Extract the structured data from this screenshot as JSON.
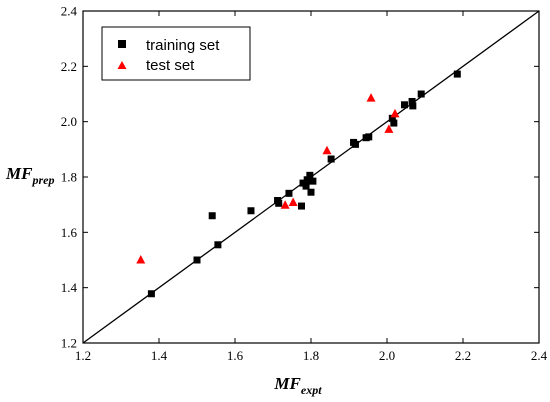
{
  "chart_data": {
    "type": "scatter",
    "xlabel": {
      "main": "MF",
      "sub": "expt"
    },
    "ylabel": {
      "main": "MF",
      "sub": "prep"
    },
    "xlim": [
      1.2,
      2.4
    ],
    "ylim": [
      1.2,
      2.4
    ],
    "xticks": [
      "1.2",
      "1.4",
      "1.6",
      "1.8",
      "2.0",
      "2.2",
      "2.4"
    ],
    "yticks": [
      "1.2",
      "1.4",
      "1.6",
      "1.8",
      "2.0",
      "2.2",
      "2.4"
    ],
    "grid": false,
    "reference_line": {
      "x": [
        1.2,
        2.4
      ],
      "y": [
        1.2,
        2.4
      ]
    },
    "legend": {
      "placement": "top-left"
    },
    "series": [
      {
        "name": "training set",
        "marker": "square",
        "color": "#000000",
        "points": [
          [
            1.38,
            1.378
          ],
          [
            1.5,
            1.5
          ],
          [
            1.54,
            1.66
          ],
          [
            1.555,
            1.555
          ],
          [
            1.642,
            1.678
          ],
          [
            1.712,
            1.715
          ],
          [
            1.715,
            1.705
          ],
          [
            1.742,
            1.741
          ],
          [
            1.775,
            1.695
          ],
          [
            1.779,
            1.778
          ],
          [
            1.787,
            1.767
          ],
          [
            1.79,
            1.79
          ],
          [
            1.797,
            1.806
          ],
          [
            1.8,
            1.745
          ],
          [
            1.805,
            1.785
          ],
          [
            1.853,
            1.865
          ],
          [
            1.912,
            1.925
          ],
          [
            1.917,
            1.918
          ],
          [
            1.945,
            1.942
          ],
          [
            1.952,
            1.945
          ],
          [
            2.014,
            2.012
          ],
          [
            2.018,
            1.995
          ],
          [
            2.046,
            2.061
          ],
          [
            2.066,
            2.073
          ],
          [
            2.068,
            2.057
          ],
          [
            2.09,
            2.1
          ],
          [
            2.185,
            2.172
          ]
        ]
      },
      {
        "name": "test set",
        "marker": "triangle",
        "color": "#ff0000",
        "points": [
          [
            1.352,
            1.5
          ],
          [
            1.732,
            1.698
          ],
          [
            1.753,
            1.708
          ],
          [
            1.842,
            1.895
          ],
          [
            1.958,
            2.085
          ],
          [
            2.005,
            1.972
          ],
          [
            2.021,
            2.028
          ]
        ]
      }
    ]
  }
}
